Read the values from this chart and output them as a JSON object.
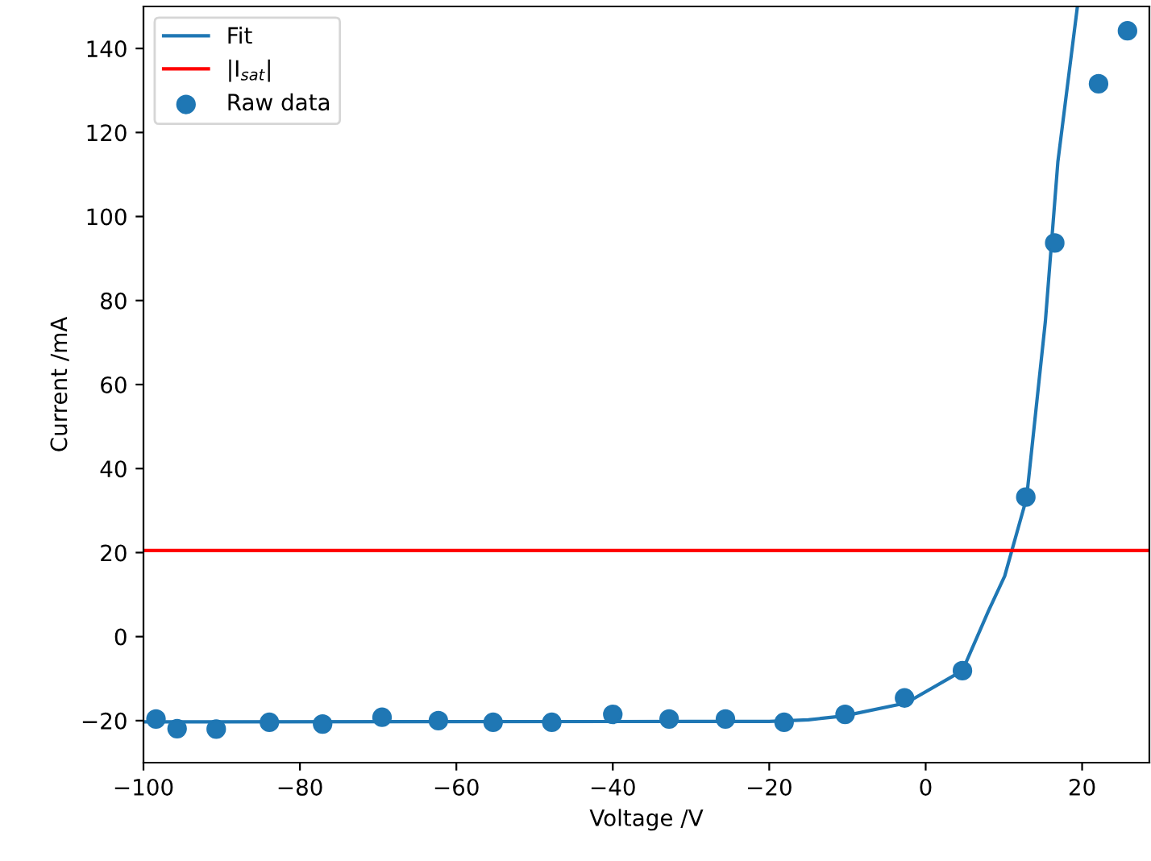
{
  "chart_data": {
    "type": "scatter",
    "xlabel": "Voltage /V",
    "ylabel": "Current /mA",
    "xlim": [
      -100,
      28.6
    ],
    "ylim": [
      -30,
      150
    ],
    "xticks": [
      -100,
      -80,
      -60,
      -40,
      -20,
      0,
      20
    ],
    "yticks": [
      -20,
      0,
      20,
      40,
      60,
      80,
      100,
      120,
      140
    ],
    "legend": "top left",
    "grid": false,
    "series": [
      {
        "name": "Fit",
        "type": "line",
        "color": "#1f77b4",
        "marker": "none",
        "line_style": "solid",
        "x": [
          -100,
          -30,
          -20,
          -15,
          -10.5,
          -2.5,
          4.7,
          8,
          10.1,
          12.9,
          15.3,
          16.9,
          19.4
        ],
        "values": [
          -20.3,
          -20.2,
          -20.2,
          -19.8,
          -18.9,
          -15.8,
          -8.1,
          6,
          14.4,
          33,
          75,
          113,
          150
        ]
      },
      {
        "name": "Raw data",
        "color": "#1f77b4",
        "marker": "circle",
        "x": [
          -98.4,
          -95.7,
          -90.7,
          -83.9,
          -77.1,
          -69.5,
          -62.3,
          -55.3,
          -47.8,
          -40.0,
          -32.8,
          -25.6,
          -18.1,
          -10.3,
          -2.7,
          4.7,
          12.8,
          16.5,
          22.1,
          25.8
        ],
        "values": [
          -19.6,
          -21.9,
          -22.0,
          -20.4,
          -20.8,
          -19.2,
          -20.0,
          -20.4,
          -20.4,
          -18.5,
          -19.6,
          -19.6,
          -20.4,
          -18.5,
          -14.6,
          -8.1,
          33.2,
          93.7,
          131.6,
          144.2
        ]
      }
    ],
    "ref_lines": [
      {
        "axis": "y",
        "value": 20.5,
        "label": "|I$_{sat}$|",
        "color": "#ff0000",
        "line_style": "solid"
      }
    ]
  }
}
